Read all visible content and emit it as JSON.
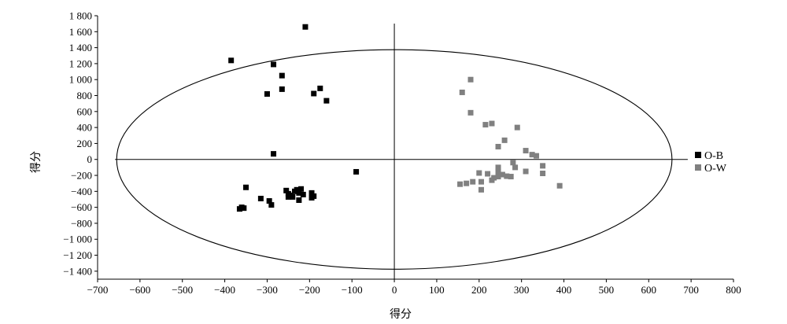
{
  "chart_data": {
    "type": "scatter",
    "title": "",
    "xlabel": "得分",
    "ylabel": "得分",
    "xlim": [
      -700,
      800
    ],
    "ylim": [
      -1500,
      1800
    ],
    "x_ticks": [
      -700,
      -600,
      -500,
      -400,
      -300,
      -200,
      -100,
      0,
      100,
      200,
      300,
      400,
      500,
      600,
      700,
      800
    ],
    "x_tick_labels": [
      "−700",
      "−600",
      "−500",
      "−400",
      "−300",
      "−200",
      "−100",
      "0",
      "100",
      "200",
      "300",
      "400",
      "500",
      "600",
      "700",
      "800"
    ],
    "y_ticks": [
      -1400,
      -1200,
      -1000,
      -800,
      -600,
      -400,
      -200,
      0,
      200,
      400,
      600,
      800,
      1000,
      1200,
      1400,
      1600,
      1800
    ],
    "y_tick_labels": [
      "−1 400",
      "−1 200",
      "−1 000",
      "−800",
      "−600",
      "−400",
      "−200",
      "0",
      "200",
      "400",
      "600",
      "800",
      "1 000",
      "1 200",
      "1 400",
      "1 600",
      "1 800"
    ],
    "ellipse": {
      "center": [
        0,
        0
      ],
      "semi_axis_x": 655,
      "semi_axis_y": 1375
    },
    "legend_position": "right",
    "series": [
      {
        "name": "O-B",
        "color": "#000000",
        "marker": "square",
        "points": [
          [
            -210,
            1660
          ],
          [
            -385,
            1240
          ],
          [
            -285,
            1190
          ],
          [
            -265,
            1050
          ],
          [
            -175,
            890
          ],
          [
            -265,
            880
          ],
          [
            -300,
            820
          ],
          [
            -190,
            825
          ],
          [
            -160,
            735
          ],
          [
            -285,
            70
          ],
          [
            -90,
            -155
          ],
          [
            -360,
            -600
          ],
          [
            -365,
            -620
          ],
          [
            -355,
            -610
          ],
          [
            -350,
            -350
          ],
          [
            -315,
            -490
          ],
          [
            -295,
            -520
          ],
          [
            -290,
            -570
          ],
          [
            -255,
            -390
          ],
          [
            -250,
            -430
          ],
          [
            -245,
            -450
          ],
          [
            -240,
            -470
          ],
          [
            -235,
            -400
          ],
          [
            -225,
            -420
          ],
          [
            -225,
            -510
          ],
          [
            -220,
            -370
          ],
          [
            -215,
            -440
          ],
          [
            -195,
            -420
          ],
          [
            -195,
            -480
          ],
          [
            -190,
            -460
          ],
          [
            -250,
            -470
          ],
          [
            -230,
            -380
          ]
        ]
      },
      {
        "name": "O-W",
        "color": "#808080",
        "marker": "square",
        "points": [
          [
            180,
            1000
          ],
          [
            160,
            840
          ],
          [
            180,
            585
          ],
          [
            230,
            450
          ],
          [
            215,
            435
          ],
          [
            290,
            400
          ],
          [
            260,
            240
          ],
          [
            245,
            160
          ],
          [
            310,
            110
          ],
          [
            325,
            60
          ],
          [
            335,
            45
          ],
          [
            280,
            -40
          ],
          [
            350,
            -80
          ],
          [
            285,
            -100
          ],
          [
            245,
            -100
          ],
          [
            245,
            -150
          ],
          [
            310,
            -150
          ],
          [
            200,
            -170
          ],
          [
            220,
            -180
          ],
          [
            350,
            -175
          ],
          [
            255,
            -190
          ],
          [
            245,
            -215
          ],
          [
            265,
            -210
          ],
          [
            275,
            -215
          ],
          [
            235,
            -230
          ],
          [
            230,
            -260
          ],
          [
            205,
            -280
          ],
          [
            185,
            -280
          ],
          [
            170,
            -300
          ],
          [
            155,
            -310
          ],
          [
            390,
            -330
          ],
          [
            205,
            -380
          ]
        ]
      }
    ]
  }
}
